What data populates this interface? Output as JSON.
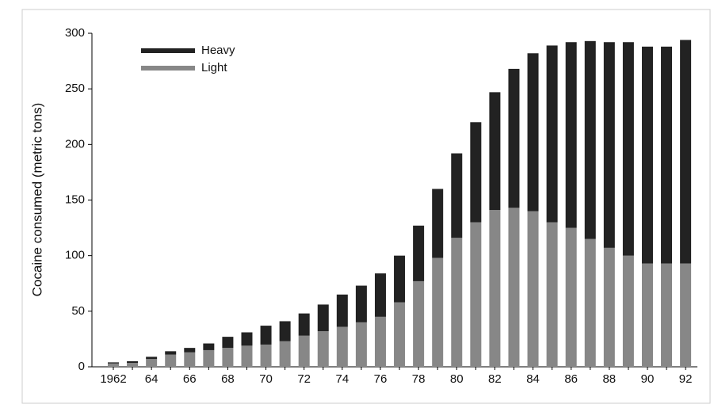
{
  "chart_data": {
    "type": "stacked_bar",
    "y_label": "Cocaine consumed (metric tons)",
    "categories": [
      "1962",
      null,
      "64",
      null,
      "66",
      null,
      "68",
      null,
      "70",
      null,
      "72",
      null,
      "74",
      null,
      "76",
      null,
      "78",
      null,
      "80",
      null,
      "82",
      null,
      "84",
      null,
      "86",
      null,
      "88",
      null,
      "90",
      null,
      "92"
    ],
    "series": [
      {
        "name": "Light",
        "color": "#878787",
        "values": [
          3,
          3.5,
          7,
          11,
          13,
          15,
          17,
          19,
          20,
          23,
          28,
          32,
          36,
          40,
          45,
          58,
          77,
          98,
          116,
          130,
          141,
          143,
          140,
          130,
          125,
          115,
          107,
          100,
          93,
          93,
          93
        ]
      },
      {
        "name": "Heavy",
        "color": "#222222",
        "values": [
          1,
          1.5,
          2,
          3,
          4,
          6,
          10,
          12,
          17,
          18,
          20,
          24,
          29,
          33,
          39,
          42,
          50,
          62,
          76,
          90,
          106,
          125,
          142,
          159,
          167,
          178,
          185,
          192,
          195,
          195,
          201
        ]
      }
    ],
    "legend_order": [
      1,
      0
    ],
    "ylim": [
      0,
      300
    ],
    "yticks": [
      0,
      50,
      100,
      150,
      200,
      250,
      300
    ]
  }
}
